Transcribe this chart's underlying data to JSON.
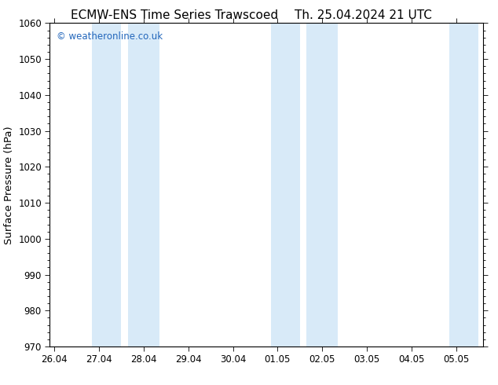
{
  "title_left": "ECMW-ENS Time Series Trawscoed",
  "title_right": "Th. 25.04.2024 21 UTC",
  "ylabel": "Surface Pressure (hPa)",
  "ylim": [
    970,
    1060
  ],
  "yticks": [
    970,
    980,
    990,
    1000,
    1010,
    1020,
    1030,
    1040,
    1050,
    1060
  ],
  "xtick_labels": [
    "26.04",
    "27.04",
    "28.04",
    "29.04",
    "30.04",
    "01.05",
    "02.05",
    "03.05",
    "04.05",
    "05.05"
  ],
  "xtick_positions": [
    0,
    1,
    2,
    3,
    4,
    5,
    6,
    7,
    8,
    9
  ],
  "shaded_bands": [
    {
      "x_start": 0.85,
      "x_end": 1.5
    },
    {
      "x_start": 1.65,
      "x_end": 2.35
    },
    {
      "x_start": 4.85,
      "x_end": 5.5
    },
    {
      "x_start": 5.65,
      "x_end": 6.35
    },
    {
      "x_start": 8.85,
      "x_end": 9.5
    }
  ],
  "shaded_color": "#d8eaf8",
  "watermark_text": "© weatheronline.co.uk",
  "watermark_color": "#2266bb",
  "bg_color": "#ffffff",
  "plot_bg_color": "#ffffff",
  "border_color": "#000000",
  "title_fontsize": 11,
  "label_fontsize": 9.5,
  "tick_fontsize": 8.5,
  "xlim": [
    -0.1,
    9.6
  ]
}
